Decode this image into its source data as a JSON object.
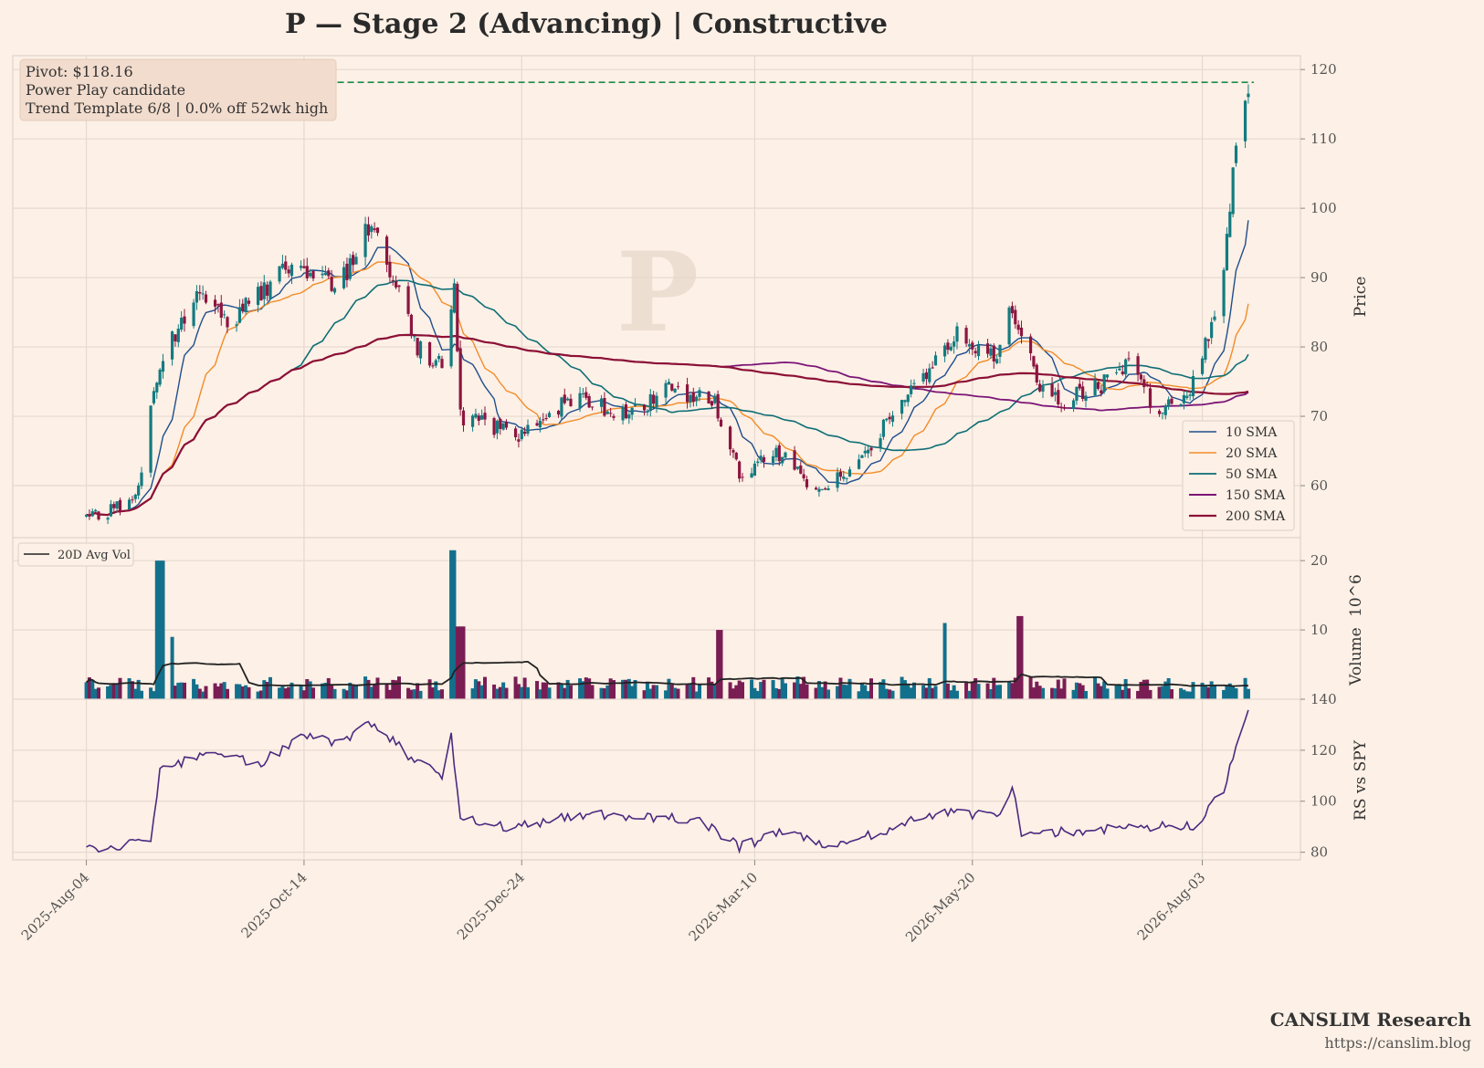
{
  "chart_data": {
    "title": "P  —  Stage 2 (Advancing)  |  Constructive",
    "watermark": "P",
    "info_box": [
      "Pivot: $118.16",
      "Power Play candidate",
      "Trend Template 6/8  |  0.0% off 52wk high"
    ],
    "pivot": 118.16,
    "panels": [
      {
        "name": "price",
        "type": "candlestick",
        "ylabel": "Price",
        "ylim": [
          52.5,
          122
        ],
        "yticks": [
          60,
          70,
          80,
          90,
          100,
          110,
          120
        ],
        "legend_placement": "right",
        "anchors": [
          {
            "x": "2025-08-04",
            "y": 55.2
          },
          {
            "x": "2025-08-20",
            "y": 57.8
          },
          {
            "x": "2025-08-28",
            "y": 78.0
          },
          {
            "x": "2025-09-10",
            "y": 87.5
          },
          {
            "x": "2025-09-20",
            "y": 83.5
          },
          {
            "x": "2025-10-10",
            "y": 92.0
          },
          {
            "x": "2025-10-25",
            "y": 88.5
          },
          {
            "x": "2025-11-05",
            "y": 98.0
          },
          {
            "x": "2025-11-20",
            "y": 80.0
          },
          {
            "x": "2025-11-28",
            "y": 77.0
          },
          {
            "x": "2025-12-02",
            "y": 88.0
          },
          {
            "x": "2025-12-04",
            "y": 70.0
          },
          {
            "x": "2025-12-24",
            "y": 67.0
          },
          {
            "x": "2026-01-10",
            "y": 73.0
          },
          {
            "x": "2026-01-28",
            "y": 70.0
          },
          {
            "x": "2026-02-10",
            "y": 74.0
          },
          {
            "x": "2026-02-25",
            "y": 72.0
          },
          {
            "x": "2026-03-05",
            "y": 62.0
          },
          {
            "x": "2026-03-20",
            "y": 65.0
          },
          {
            "x": "2026-03-28",
            "y": 59.0
          },
          {
            "x": "2026-04-10",
            "y": 62.0
          },
          {
            "x": "2026-04-30",
            "y": 74.0
          },
          {
            "x": "2026-05-10",
            "y": 79.0
          },
          {
            "x": "2026-05-15",
            "y": 82.0
          },
          {
            "x": "2026-05-28",
            "y": 78.0
          },
          {
            "x": "2026-06-02",
            "y": 86.0
          },
          {
            "x": "2026-06-10",
            "y": 75.0
          },
          {
            "x": "2026-06-18",
            "y": 72.0
          },
          {
            "x": "2026-07-01",
            "y": 74.5
          },
          {
            "x": "2026-07-10",
            "y": 78.0
          },
          {
            "x": "2026-07-20",
            "y": 70.0
          },
          {
            "x": "2026-08-01",
            "y": 75.0
          },
          {
            "x": "2026-08-10",
            "y": 90.0
          },
          {
            "x": "2026-08-14",
            "y": 110.0
          },
          {
            "x": "2026-08-18",
            "y": 118.0
          }
        ],
        "sma_legend": [
          "10 SMA",
          "20 SMA",
          "50 SMA",
          "150 SMA",
          "200 SMA"
        ],
        "sma_windows": [
          10,
          20,
          50,
          150,
          200
        ],
        "sma_colors": [
          "#1f4e8c",
          "#f28c28",
          "#0f6e76",
          "#7b1577",
          "#8c1036"
        ],
        "candle_colors": {
          "up": "#137b80",
          "down": "#8c1540"
        }
      },
      {
        "name": "volume",
        "type": "bar",
        "ylabel": "Volume",
        "exponent": "10^6",
        "ylim": [
          0,
          22
        ],
        "yticks": [
          10,
          20
        ],
        "legend": [
          "20D Avg Vol"
        ],
        "legend_placement": "top-left",
        "spikes": [
          {
            "x": "2025-08-28",
            "y": 20.0
          },
          {
            "x": "2025-08-31",
            "y": 9.0
          },
          {
            "x": "2025-12-02",
            "y": 21.5
          },
          {
            "x": "2025-12-04",
            "y": 10.5
          },
          {
            "x": "2026-02-27",
            "y": 10.0
          },
          {
            "x": "2026-05-10",
            "y": 11.0
          },
          {
            "x": "2026-06-05",
            "y": 12.0
          }
        ],
        "base_volume": 2.2,
        "colors": {
          "up": "#13708c",
          "down": "#7a1d54",
          "avg": "#222222"
        }
      },
      {
        "name": "rs",
        "type": "line",
        "ylabel": "RS vs SPY",
        "ylim": [
          77,
          140
        ],
        "yticks": [
          80,
          100,
          120,
          140
        ],
        "anchors": [
          {
            "x": "2025-08-04",
            "y": 81
          },
          {
            "x": "2025-08-25",
            "y": 84
          },
          {
            "x": "2025-08-28",
            "y": 112
          },
          {
            "x": "2025-09-15",
            "y": 120
          },
          {
            "x": "2025-09-28",
            "y": 114
          },
          {
            "x": "2025-10-15",
            "y": 126
          },
          {
            "x": "2025-10-25",
            "y": 122
          },
          {
            "x": "2025-11-05",
            "y": 131
          },
          {
            "x": "2025-11-20",
            "y": 115
          },
          {
            "x": "2025-11-28",
            "y": 110
          },
          {
            "x": "2025-12-01",
            "y": 126
          },
          {
            "x": "2025-12-04",
            "y": 93
          },
          {
            "x": "2025-12-20",
            "y": 90
          },
          {
            "x": "2026-01-15",
            "y": 95
          },
          {
            "x": "2026-02-20",
            "y": 93
          },
          {
            "x": "2026-03-05",
            "y": 82
          },
          {
            "x": "2026-03-20",
            "y": 88
          },
          {
            "x": "2026-04-05",
            "y": 82
          },
          {
            "x": "2026-05-10",
            "y": 96
          },
          {
            "x": "2026-05-28",
            "y": 94
          },
          {
            "x": "2026-06-02",
            "y": 106
          },
          {
            "x": "2026-06-05",
            "y": 88
          },
          {
            "x": "2026-06-20",
            "y": 88
          },
          {
            "x": "2026-07-10",
            "y": 90
          },
          {
            "x": "2026-08-01",
            "y": 90
          },
          {
            "x": "2026-08-10",
            "y": 105
          },
          {
            "x": "2026-08-18",
            "y": 137
          }
        ],
        "color": "#4b2a80"
      }
    ],
    "x_axis": {
      "type": "date",
      "start": "2025-08-04",
      "end": "2026-08-18",
      "xlim": [
        "2025-07-11",
        "2026-09-04"
      ],
      "tick_dates": [
        "2025-08-04",
        "2025-10-14",
        "2025-12-24",
        "2026-03-10",
        "2026-05-20",
        "2026-08-03"
      ],
      "tick_labels": [
        "2025-Aug-04",
        "2025-Oct-14",
        "2025-Dec-24",
        "2026-Mar-10",
        "2026-May-20",
        "2026-Aug-03"
      ]
    },
    "grid": true
  },
  "footer": {
    "brand": "CANSLIM Research",
    "url": "https://canslim.blog"
  },
  "colors": {
    "background": "#fdf0e6",
    "grid": "#e6d9cf",
    "pivot_line": "#1e8a4a",
    "info_box": "#f2dccd"
  }
}
